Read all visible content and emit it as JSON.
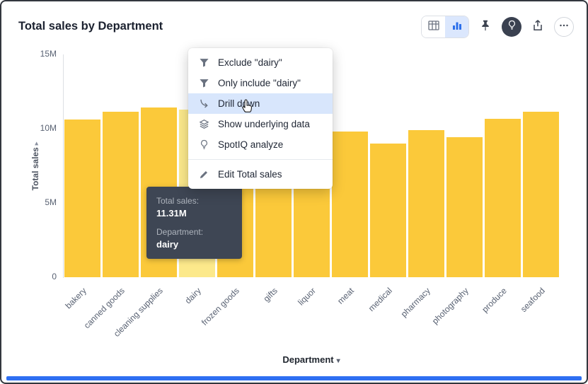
{
  "header": {
    "title": "Total sales by Department"
  },
  "toolbar": {
    "buttons": [
      {
        "name": "table-view"
      },
      {
        "name": "bar-chart-view",
        "active": true
      },
      {
        "name": "pin"
      },
      {
        "name": "lightbulb"
      },
      {
        "name": "share"
      },
      {
        "name": "more-options"
      }
    ]
  },
  "menu": {
    "items": [
      {
        "icon": "filter-icon",
        "label": "Exclude \"dairy\""
      },
      {
        "icon": "filter-icon",
        "label": "Only include \"dairy\""
      },
      {
        "icon": "drill-down-icon",
        "label": "Drill down",
        "highlighted": true
      },
      {
        "icon": "layers-icon",
        "label": "Show underlying data"
      },
      {
        "icon": "bulb-icon",
        "label": "SpotIQ analyze"
      },
      {
        "icon": "pencil-icon",
        "label": "Edit Total sales",
        "divider_before": true
      }
    ]
  },
  "tooltip": {
    "metric_label": "Total sales:",
    "metric_value": "11.31M",
    "dimension_label": "Department:",
    "dimension_value": "dairy"
  },
  "glyphs": {
    "sort_caret": "▸",
    "dropdown_caret": "▾"
  },
  "chart_data": {
    "type": "bar",
    "title": "Total sales by Department",
    "xlabel": "Department",
    "ylabel": "Total sales",
    "categories": [
      "bakery",
      "canned goods",
      "cleaning supplies",
      "dairy",
      "frozen goods",
      "gifts",
      "liquor",
      "meat",
      "medical",
      "pharmacy",
      "photography",
      "produce",
      "seafood"
    ],
    "values": [
      10.6,
      11.15,
      11.45,
      11.31,
      10.9,
      9.7,
      9.3,
      9.8,
      9.0,
      9.9,
      9.45,
      10.65,
      11.15
    ],
    "value_unit": "M",
    "highlight_index": 3,
    "highlighted_category": "dairy",
    "highlighted_value_label": "11.31M",
    "ylim": [
      0,
      15
    ],
    "yticks": [
      {
        "value": 0,
        "label": "0"
      },
      {
        "value": 5,
        "label": "5M"
      },
      {
        "value": 10,
        "label": "10M"
      },
      {
        "value": 15,
        "label": "15M"
      }
    ],
    "grid": false,
    "legend": "none",
    "bar_color": "#fbc93a",
    "highlight_color": "#fce98b"
  },
  "colors": {
    "accent_blue": "#2e6ff2",
    "menu_highlight": "#d8e6fc",
    "tooltip_bg": "#3e4654",
    "bar_yellow": "#fbc93a",
    "bar_highlight": "#fce98b"
  }
}
